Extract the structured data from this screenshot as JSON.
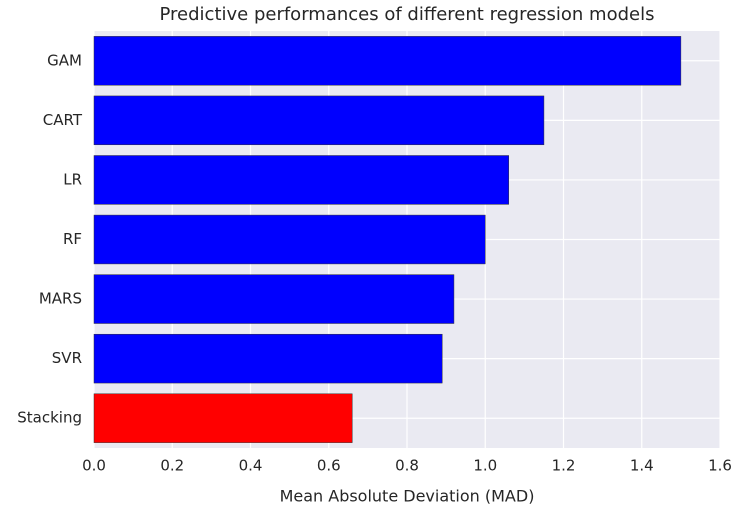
{
  "chart_data": {
    "type": "barh",
    "title": "Predictive performances of different regression models",
    "x_label": "Mean Absolute Deviation (MAD)",
    "categories": [
      "GAM",
      "CART",
      "LR",
      "RF",
      "MARS",
      "SVR",
      "Stacking"
    ],
    "values": [
      1.5,
      1.15,
      1.06,
      1.0,
      0.92,
      0.89,
      0.66
    ],
    "colors": [
      "#0000ff",
      "#0000ff",
      "#0000ff",
      "#0000ff",
      "#0000ff",
      "#0000ff",
      "#ff0000"
    ],
    "xlim": [
      0,
      1.6
    ],
    "xticks": [
      {
        "value": 0,
        "label": "0.0"
      },
      {
        "value": 0.2,
        "label": "0.2"
      },
      {
        "value": 0.4,
        "label": "0.4"
      },
      {
        "value": 0.6,
        "label": "0.6"
      },
      {
        "value": 0.8,
        "label": "0.8"
      },
      {
        "value": 1,
        "label": "1.0"
      },
      {
        "value": 1.2,
        "label": "1.2"
      },
      {
        "value": 1.4,
        "label": "1.4"
      },
      {
        "value": 1.6,
        "label": "1.6"
      }
    ],
    "grid": true
  }
}
